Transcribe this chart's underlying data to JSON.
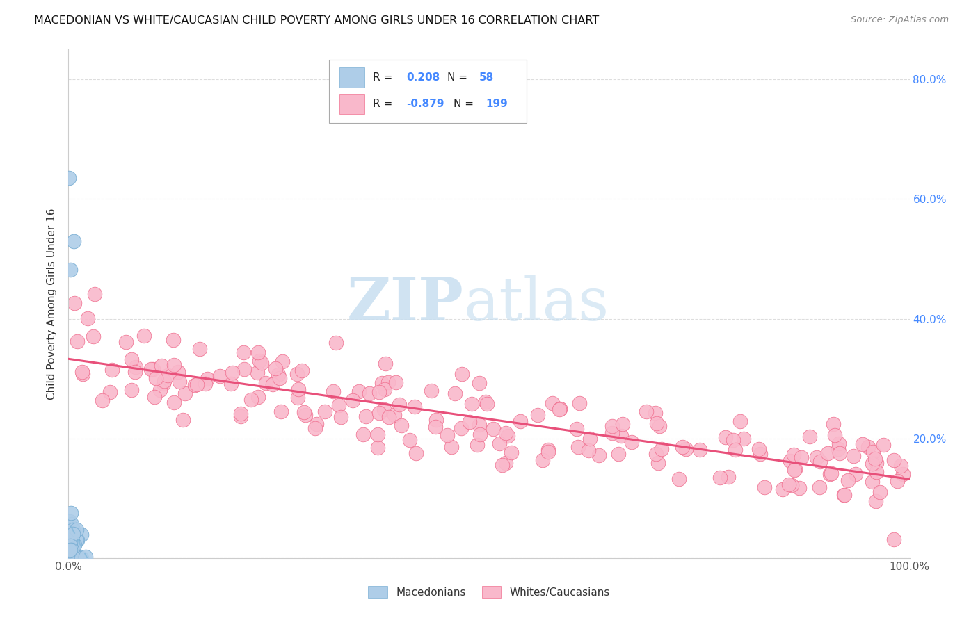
{
  "title": "MACEDONIAN VS WHITE/CAUCASIAN CHILD POVERTY AMONG GIRLS UNDER 16 CORRELATION CHART",
  "source": "Source: ZipAtlas.com",
  "ylabel": "Child Poverty Among Girls Under 16",
  "watermark_zip": "ZIP",
  "watermark_atlas": "atlas",
  "macedonian": {
    "R": 0.208,
    "N": 58,
    "color": "#aecde8",
    "edge_color": "#7bafd4",
    "line_color": "#7bafd4"
  },
  "white": {
    "R": -0.879,
    "N": 199,
    "color": "#f9b8cb",
    "edge_color": "#f07090",
    "line_color": "#e8507a"
  },
  "xlim": [
    0.0,
    1.0
  ],
  "ylim": [
    0.0,
    0.85
  ],
  "right_ytick_vals": [
    0.2,
    0.4,
    0.6,
    0.8
  ],
  "right_ytick_labels": [
    "20.0%",
    "40.0%",
    "60.0%",
    "80.0%"
  ],
  "xtick_vals": [
    0.0,
    0.2,
    0.4,
    0.6,
    0.8,
    1.0
  ],
  "xtick_labels": [
    "0.0%",
    "",
    "",
    "",
    "",
    "100.0%"
  ],
  "background_color": "#ffffff",
  "legend_mac_label": "Macedonians",
  "legend_white_label": "Whites/Caucasians",
  "right_label_color": "#4488ff",
  "legend_R_N_color": "#4488ff",
  "legend_R_N_color2": "#4488ff"
}
